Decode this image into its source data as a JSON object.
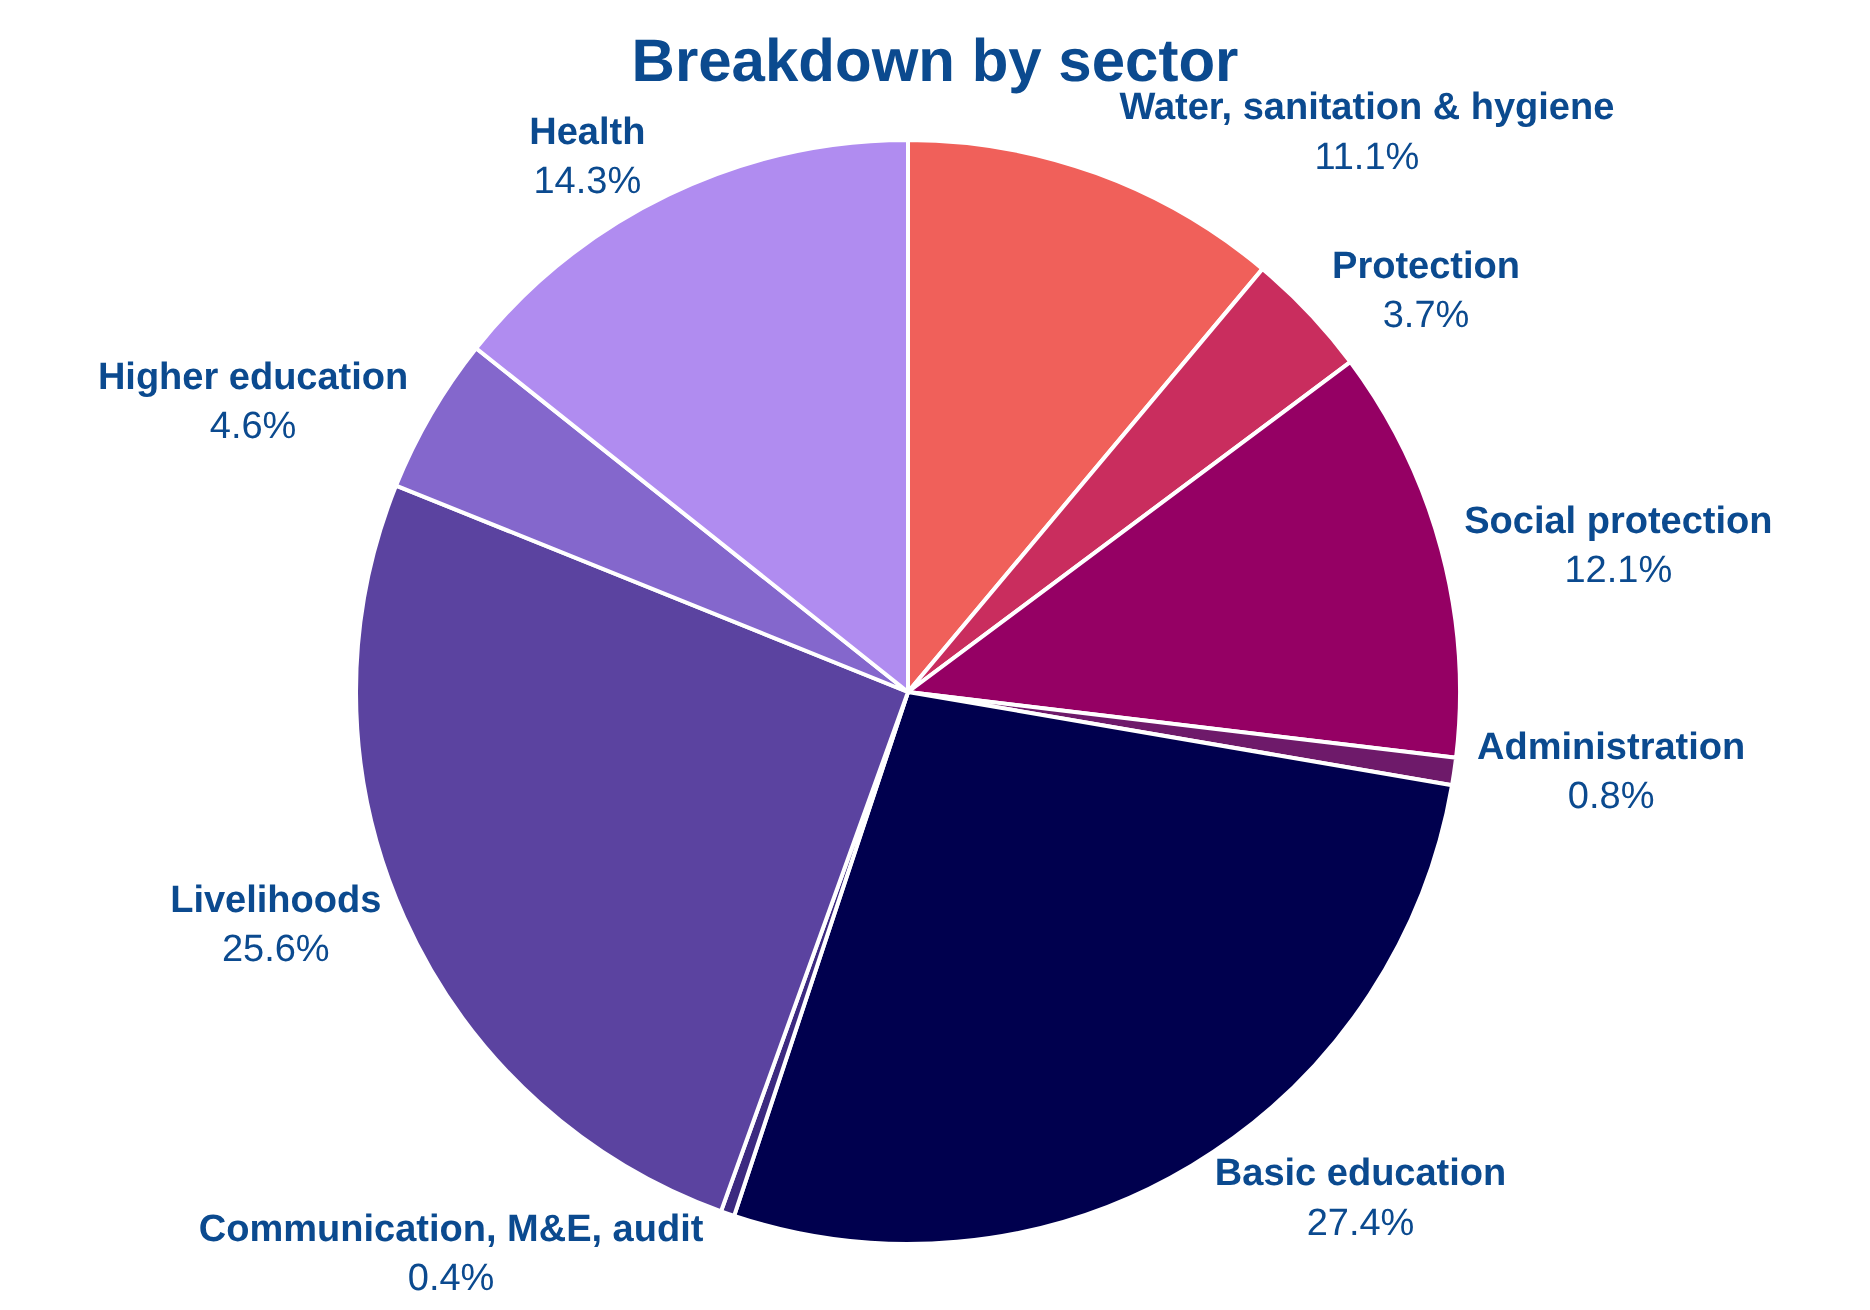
{
  "chart_data": {
    "type": "pie",
    "title": "Breakdown by sector",
    "categories": [
      "Water, sanitation & hygiene",
      "Protection",
      "Social protection",
      "Administration",
      "Basic education",
      "Communication, M&E, audit",
      "Livelihoods",
      "Higher education",
      "Health"
    ],
    "values": [
      11.1,
      3.7,
      12.1,
      0.8,
      27.4,
      0.4,
      25.6,
      4.6,
      14.3
    ],
    "value_labels": [
      "11.1%",
      "3.7%",
      "12.1%",
      "0.8%",
      "27.4%",
      "0.4%",
      "25.6%",
      "4.6%",
      "14.3%"
    ],
    "colors": [
      "#f0605a",
      "#c92d5e",
      "#950064",
      "#6e1a6a",
      "#00004e",
      "#3c2a80",
      "#5b43a0",
      "#8467cc",
      "#b08cf0"
    ],
    "legend": false
  }
}
